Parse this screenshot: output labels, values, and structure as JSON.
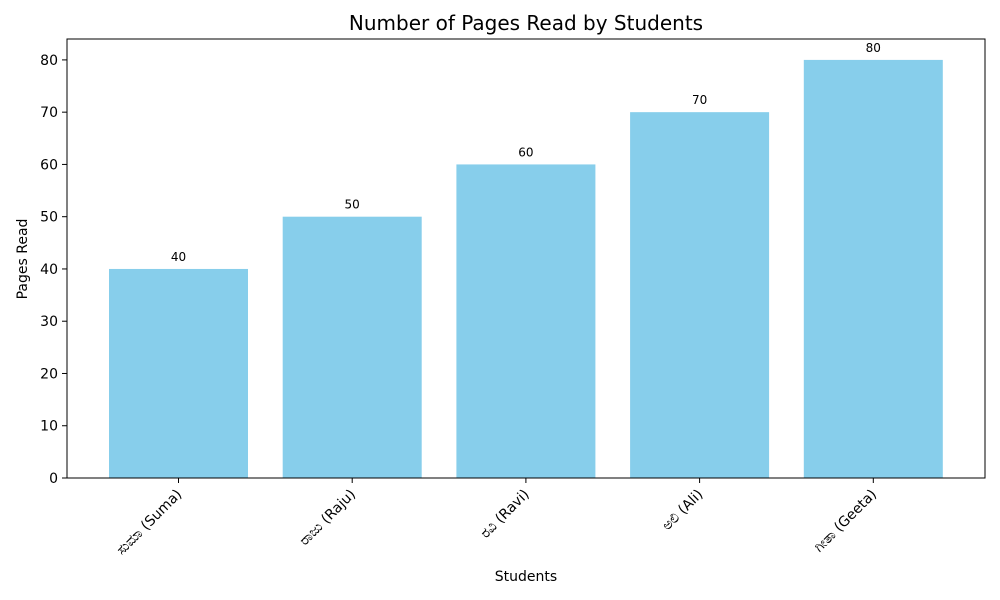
{
  "chart_data": {
    "type": "bar",
    "title": "Number of Pages Read by Students",
    "xlabel": "Students",
    "ylabel": "Pages Read",
    "categories": [
      "ಸುಮಾ (Suma)",
      "ರಾಜು (Raju)",
      "ರವಿ (Ravi)",
      "ಅಲಿ (Ali)",
      "ಗೀತಾ (Geeta)"
    ],
    "values": [
      40,
      50,
      60,
      70,
      80
    ],
    "data_labels": [
      "40",
      "50",
      "60",
      "70",
      "80"
    ],
    "ylim": [
      0,
      84
    ],
    "yticks": [
      0,
      10,
      20,
      30,
      40,
      50,
      60,
      70,
      80
    ],
    "ytick_labels": [
      "0",
      "10",
      "20",
      "30",
      "40",
      "50",
      "60",
      "70",
      "80"
    ],
    "bar_color": "#87CEEB",
    "grid": false,
    "legend": "none"
  }
}
